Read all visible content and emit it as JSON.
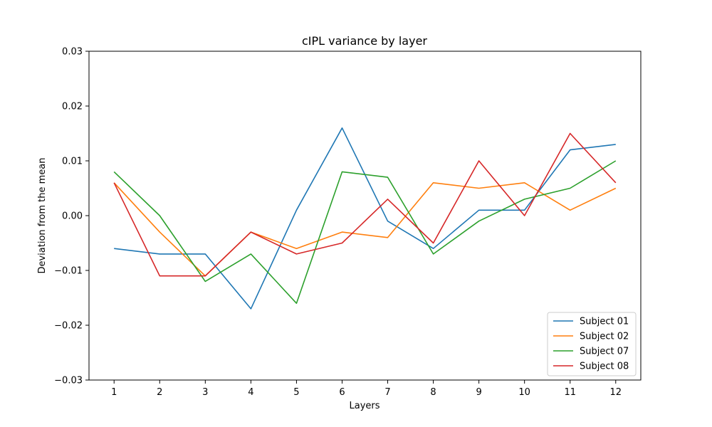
{
  "chart_data": {
    "type": "line",
    "title": "cIPL variance by layer",
    "xlabel": "Layers",
    "ylabel": "Deviation from the mean",
    "x": [
      1,
      2,
      3,
      4,
      5,
      6,
      7,
      8,
      9,
      10,
      11,
      12
    ],
    "ylim": [
      -0.03,
      0.03
    ],
    "yticks": [
      "0.03",
      "0.02",
      "0.01",
      "0.00",
      "−0.01",
      "−0.02",
      "−0.03"
    ],
    "ytick_values": [
      0.03,
      0.02,
      0.01,
      0.0,
      -0.01,
      -0.02,
      -0.03
    ],
    "grid": false,
    "legend_position": "lower-right",
    "series": [
      {
        "name": "Subject 01",
        "color": "#1f77b4",
        "values": [
          -0.006,
          -0.007,
          -0.007,
          -0.017,
          0.001,
          0.016,
          -0.001,
          -0.006,
          0.001,
          0.001,
          0.012,
          0.013
        ]
      },
      {
        "name": "Subject 02",
        "color": "#ff7f0e",
        "values": [
          0.006,
          -0.003,
          -0.011,
          -0.003,
          -0.006,
          -0.003,
          -0.004,
          0.006,
          0.005,
          0.006,
          0.001,
          0.005
        ]
      },
      {
        "name": "Subject 07",
        "color": "#2ca02c",
        "values": [
          0.008,
          0.0,
          -0.012,
          -0.007,
          -0.016,
          0.008,
          0.007,
          -0.007,
          -0.001,
          0.003,
          0.005,
          0.01
        ]
      },
      {
        "name": "Subject 08",
        "color": "#d62728",
        "values": [
          0.006,
          -0.011,
          -0.011,
          -0.003,
          -0.007,
          -0.005,
          0.003,
          -0.005,
          0.01,
          0.0,
          0.015,
          0.006
        ]
      }
    ]
  }
}
